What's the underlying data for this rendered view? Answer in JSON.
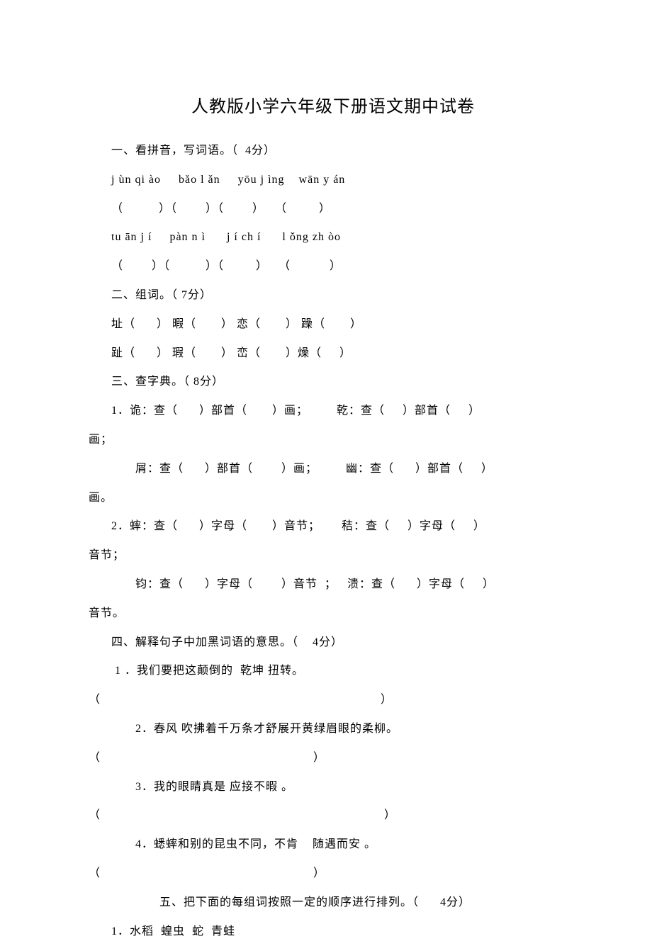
{
  "title": "人教版小学六年级下册语文期中试卷",
  "lines": [
    {
      "cls": "indent1",
      "text": "一、看拼音，写词语。（  4分）"
    },
    {
      "cls": "indent1",
      "text": "j ùn qi ào     bǎo l ǎn     yōu j ìng    wān y án"
    },
    {
      "cls": "indent1",
      "text": "（          ）（        ）（        ）   （         ）"
    },
    {
      "cls": "indent1",
      "text": "tu ān j í     pàn n ì      j í ch í      l ǒng zh òo"
    },
    {
      "cls": "indent1",
      "text": "（        ）（          ）（         ）   （           ）"
    },
    {
      "cls": "indent1",
      "text": "二、组词。（ 7分）"
    },
    {
      "cls": "indent1",
      "text": "址（      ） 暇（       ） 恋（       ） 躁（       ）"
    },
    {
      "cls": "indent1",
      "text": "趾（      ） 瑕（       ） 峦（       ）燥（     ）"
    },
    {
      "cls": "indent1",
      "text": "三、查字典。（ 8分）"
    },
    {
      "cls": "indent1",
      "text": "1．诡：查（      ）部首（       ）画；        乾：查（     ）部首（     ）"
    },
    {
      "cls": "",
      "text": "画；"
    },
    {
      "cls": "indent2",
      "text": "屑：查（      ）部首（        ）画；        幽：查（      ）部首（     ）"
    },
    {
      "cls": "",
      "text": "画。"
    },
    {
      "cls": "indent1",
      "text": "2．蟀：查（      ）字母（       ）音节；      秸：查（     ）字母（     ）"
    },
    {
      "cls": "",
      "text": "音节；"
    },
    {
      "cls": "indent2",
      "text": "钧：查（      ）字母（        ）音节  ；   溃：查（      ）字母（     ）"
    },
    {
      "cls": "",
      "text": "音节。"
    },
    {
      "cls": "indent1",
      "text": "四、解释句子中加黑词语的意思。（    4分）"
    },
    {
      "cls": "indent1",
      "text": " 1 ．我们要把这颠倒的  乾坤 扭转。"
    },
    {
      "cls": "",
      "text": "（                                                                               ）"
    },
    {
      "cls": "indent2",
      "text": "2．春风 吹拂着千万条才舒展开黄绿眉眼的柔柳。"
    },
    {
      "cls": "",
      "text": "（                                                            ）"
    },
    {
      "cls": "indent2",
      "text": "3．我的眼睛真是 应接不暇 。"
    },
    {
      "cls": "",
      "text": "（                                                                                ）"
    },
    {
      "cls": "indent2",
      "text": "4．蟋蟀和别的昆虫不同，不肯    随遇而安 。"
    },
    {
      "cls": "",
      "text": "（                                                            ）"
    },
    {
      "cls": "indent3",
      "text": "五、把下面的每组词按照一定的顺序进行排列。（      4分）"
    },
    {
      "cls": "indent1",
      "text": "1．水稻  蝗虫  蛇  青蛙"
    }
  ]
}
